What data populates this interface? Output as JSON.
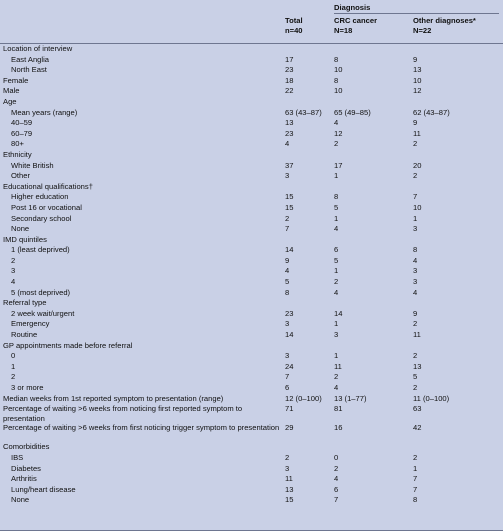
{
  "header": {
    "diagnosis": "Diagnosis",
    "col1": [
      "Total",
      "n=40"
    ],
    "col2": [
      "",
      "CRC cancer",
      "N=18"
    ],
    "col3": [
      "",
      "Other diagnoses*",
      "N=22"
    ]
  },
  "rows": [
    {
      "label": "Location of interview",
      "indent": false,
      "v": [
        "",
        "",
        ""
      ]
    },
    {
      "label": "East Anglia",
      "indent": true,
      "v": [
        "17",
        "8",
        "9"
      ]
    },
    {
      "label": "North East",
      "indent": true,
      "v": [
        "23",
        "10",
        "13"
      ]
    },
    {
      "label": "Female",
      "indent": false,
      "v": [
        "18",
        "8",
        "10"
      ]
    },
    {
      "label": "Male",
      "indent": false,
      "v": [
        "22",
        "10",
        "12"
      ]
    },
    {
      "label": "Age",
      "indent": false,
      "v": [
        "",
        "",
        ""
      ]
    },
    {
      "label": "Mean years (range)",
      "indent": true,
      "v": [
        "63 (43–87)",
        "65 (49–85)",
        "62 (43–87)"
      ]
    },
    {
      "label": "40–59",
      "indent": true,
      "v": [
        "13",
        "4",
        "9"
      ]
    },
    {
      "label": "60–79",
      "indent": true,
      "v": [
        "23",
        "12",
        "11"
      ]
    },
    {
      "label": "80+",
      "indent": true,
      "v": [
        "4",
        "2",
        "2"
      ]
    },
    {
      "label": "Ethnicity",
      "indent": false,
      "v": [
        "",
        "",
        ""
      ]
    },
    {
      "label": "White British",
      "indent": true,
      "v": [
        "37",
        "17",
        "20"
      ]
    },
    {
      "label": "Other",
      "indent": true,
      "v": [
        "3",
        "1",
        "2"
      ]
    },
    {
      "label": "Educational qualifications†",
      "indent": false,
      "v": [
        "",
        "",
        ""
      ]
    },
    {
      "label": "Higher education",
      "indent": true,
      "v": [
        "15",
        "8",
        "7"
      ]
    },
    {
      "label": "Post 16 or vocational",
      "indent": true,
      "v": [
        "15",
        "5",
        "10"
      ]
    },
    {
      "label": "Secondary school",
      "indent": true,
      "v": [
        "2",
        "1",
        "1"
      ]
    },
    {
      "label": "None",
      "indent": true,
      "v": [
        "7",
        "4",
        "3"
      ]
    },
    {
      "label": "IMD quintiles",
      "indent": false,
      "v": [
        "",
        "",
        ""
      ]
    },
    {
      "label": "1 (least deprived)",
      "indent": true,
      "v": [
        "14",
        "6",
        "8"
      ]
    },
    {
      "label": "2",
      "indent": true,
      "v": [
        "9",
        "5",
        "4"
      ]
    },
    {
      "label": "3",
      "indent": true,
      "v": [
        "4",
        "1",
        "3"
      ]
    },
    {
      "label": "4",
      "indent": true,
      "v": [
        "5",
        "2",
        "3"
      ]
    },
    {
      "label": "5 (most deprived)",
      "indent": true,
      "v": [
        "8",
        "4",
        "4"
      ]
    },
    {
      "label": "Referral type",
      "indent": false,
      "v": [
        "",
        "",
        ""
      ]
    },
    {
      "label": "2 week wait/urgent",
      "indent": true,
      "v": [
        "23",
        "14",
        "9"
      ]
    },
    {
      "label": "Emergency",
      "indent": true,
      "v": [
        "3",
        "1",
        "2"
      ]
    },
    {
      "label": "Routine",
      "indent": true,
      "v": [
        "14",
        "3",
        "11"
      ]
    },
    {
      "label": "GP appointments made before referral",
      "indent": false,
      "v": [
        "",
        "",
        ""
      ]
    },
    {
      "label": "0",
      "indent": true,
      "v": [
        "3",
        "1",
        "2"
      ]
    },
    {
      "label": "1",
      "indent": true,
      "v": [
        "24",
        "11",
        "13"
      ]
    },
    {
      "label": "2",
      "indent": true,
      "v": [
        "7",
        "2",
        "5"
      ]
    },
    {
      "label": "3 or more",
      "indent": true,
      "v": [
        "6",
        "4",
        "2"
      ]
    },
    {
      "label": "Median weeks from 1st reported symptom to presentation (range)",
      "indent": false,
      "v": [
        "12 (0–100)",
        "13 (1–77)",
        "11 (0–100)"
      ]
    },
    {
      "label": "Percentage of waiting >6 weeks from noticing first reported symptom to presentation",
      "indent": false,
      "wrap": true,
      "v": [
        "71",
        "81",
        "63"
      ]
    },
    {
      "label": "Percentage of waiting >6 weeks from first noticing trigger symptom to presentation",
      "indent": false,
      "wrap": true,
      "v": [
        "29",
        "16",
        "42"
      ]
    },
    {
      "label": "Comorbidities",
      "indent": false,
      "v": [
        "",
        "",
        ""
      ]
    },
    {
      "label": "IBS",
      "indent": true,
      "v": [
        "2",
        "0",
        "2"
      ]
    },
    {
      "label": "Diabetes",
      "indent": true,
      "v": [
        "3",
        "2",
        "1"
      ]
    },
    {
      "label": "Arthritis",
      "indent": true,
      "v": [
        "11",
        "4",
        "7"
      ]
    },
    {
      "label": "Lung/heart disease",
      "indent": true,
      "v": [
        "13",
        "6",
        "7"
      ]
    },
    {
      "label": "None",
      "indent": true,
      "v": [
        "15",
        "7",
        "8"
      ]
    }
  ]
}
